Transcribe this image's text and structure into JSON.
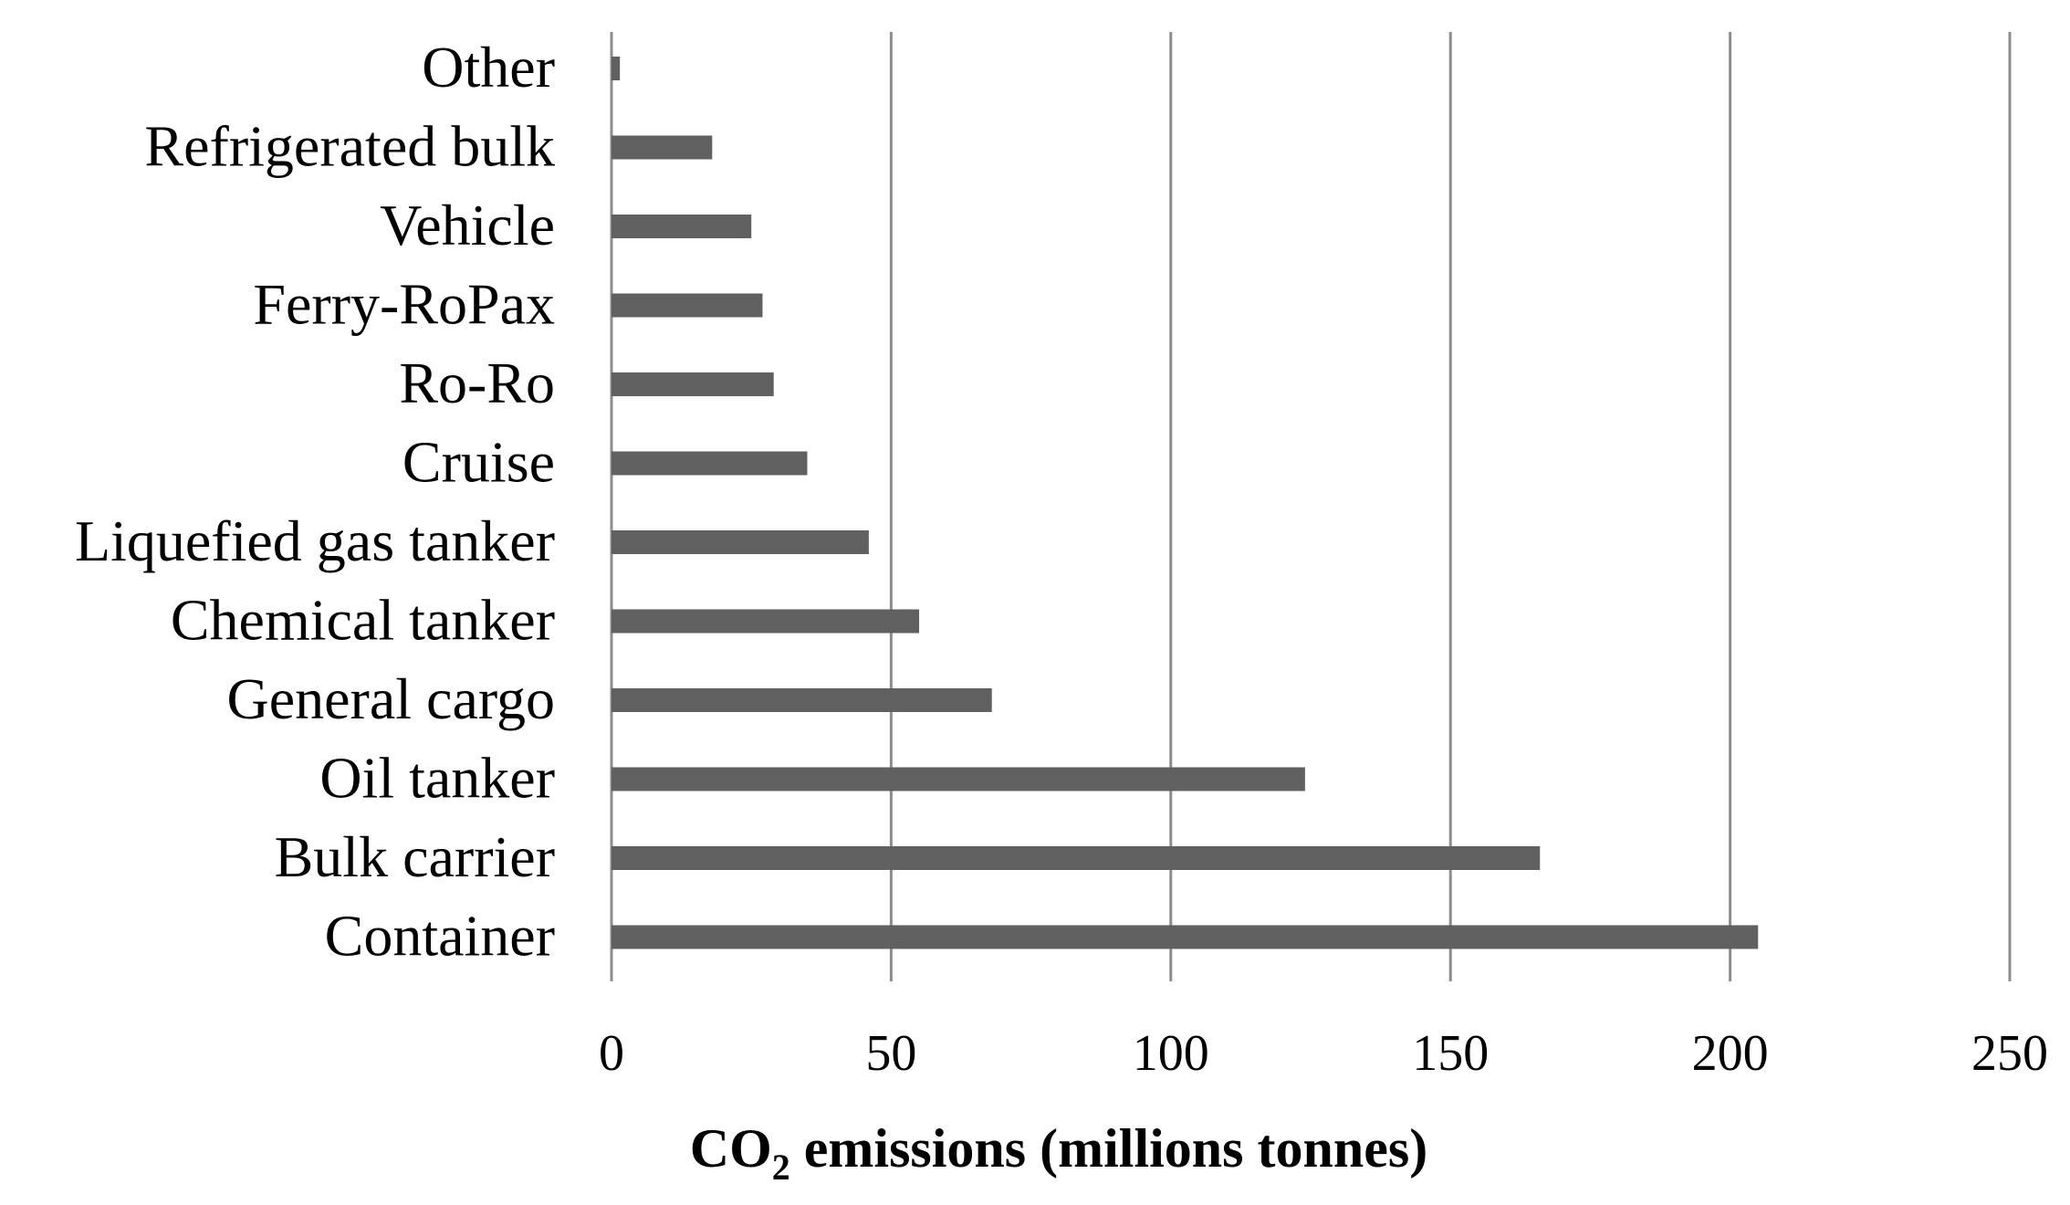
{
  "chart_data": {
    "type": "bar",
    "orientation": "horizontal",
    "categories": [
      "Other",
      "Refrigerated bulk",
      "Vehicle",
      "Ferry-RoPax",
      "Ro-Ro",
      "Cruise",
      "Liquefied gas tanker",
      "Chemical tanker",
      "General cargo",
      "Oil tanker",
      "Bulk carrier",
      "Container"
    ],
    "values": [
      1.5,
      18,
      25,
      27,
      29,
      35,
      46,
      55,
      68,
      124,
      166,
      205
    ],
    "xlim": [
      0,
      250
    ],
    "xticks": [
      "0",
      "50",
      "100",
      "150",
      "200",
      "250"
    ],
    "xlabel_parts": {
      "before_sub": "CO",
      "sub": "2",
      "after_sub": " emissions (millions tonnes)"
    },
    "ylabel": "",
    "title": "",
    "grid": "vertical",
    "legend": "none",
    "bar_color": "#606060",
    "grid_color": "#8c8c8c"
  }
}
